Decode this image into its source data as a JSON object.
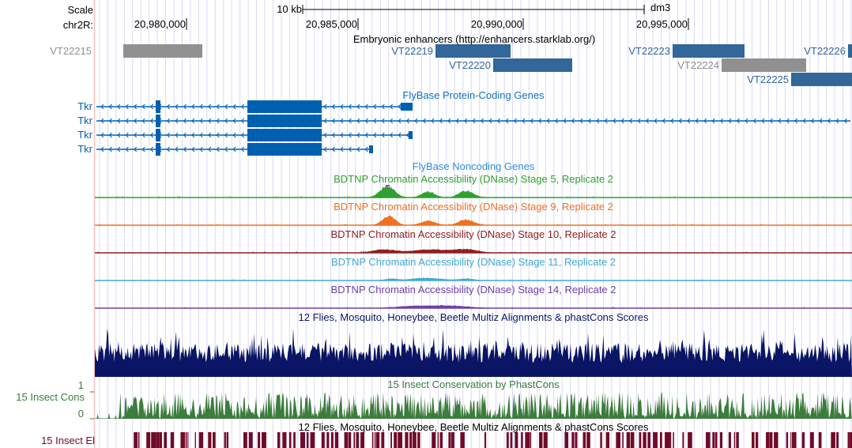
{
  "header": {
    "scale_label": "Scale",
    "scale_bar_label": "10 kb",
    "assembly": "dm3",
    "chrom_label": "chr2R:",
    "ticks": [
      "20,980,000",
      "20,985,000",
      "20,990,000",
      "20,995,000"
    ]
  },
  "colors": {
    "enhancer": "#336699",
    "enhancer_inactive": "#909090",
    "gene": "#0060b0",
    "stage5": "#30a030",
    "stage9": "#f07020",
    "stage10": "#902020",
    "stage11": "#40a8d8",
    "stage14": "#7040a8",
    "multiz": "#0a1565",
    "cons": "#3c7c3c",
    "elements": "#700a28",
    "grid": "#d8d8f8"
  },
  "enhancers": {
    "title": "Embryonic enhancers (http://enhancers.starklab.org/)",
    "items": [
      {
        "name": "VT22215",
        "start": 20978107,
        "end": 20980473,
        "row": 0,
        "active": false
      },
      {
        "name": "VT22219",
        "start": 20987453,
        "end": 20989701,
        "row": 0,
        "active": true
      },
      {
        "name": "VT22220",
        "start": 20989180,
        "end": 20991546,
        "row": 1,
        "active": true
      },
      {
        "name": "VT22223",
        "start": 20994551,
        "end": 20996704,
        "row": 0,
        "active": true
      },
      {
        "name": "VT22224",
        "start": 20996018,
        "end": 20998549,
        "row": 1,
        "active": false
      },
      {
        "name": "VT22225",
        "start": 20998100,
        "end": 21000100,
        "row": 2,
        "active": true
      },
      {
        "name": "VT22226",
        "start": 20999803,
        "end": 21000100,
        "row": 0,
        "active": true
      }
    ]
  },
  "genes": {
    "title": "FlyBase Protein-Coding Genes",
    "strand": "-",
    "transcripts": [
      {
        "name": "Tkr",
        "end": 20986767,
        "exons": [
          [
            20979077,
            20979219
          ],
          [
            20981822,
            20984046
          ],
          [
            20986412,
            20986767
          ]
        ]
      },
      {
        "name": "Tkr",
        "end": 21000100,
        "exons": [
          [
            20979077,
            20979219
          ],
          [
            20981822,
            20984046
          ]
        ]
      },
      {
        "name": "Tkr",
        "end": 20986767,
        "exons": [
          [
            20979077,
            20979219
          ],
          [
            20981822,
            20984046
          ],
          [
            20986649,
            20986767
          ]
        ]
      },
      {
        "name": "Tkr",
        "end": 20985584,
        "exons": [
          [
            20979077,
            20979219
          ],
          [
            20981822,
            20984046
          ],
          [
            20985466,
            20985584
          ]
        ]
      }
    ]
  },
  "noncoding": {
    "title": "FlyBase Noncoding Genes"
  },
  "dnase": [
    {
      "title": "BDTNP Chromatin Accessibility (DNase) Stage 5, Replicate 2",
      "color_key": "stage5"
    },
    {
      "title": "BDTNP Chromatin Accessibility (DNase) Stage 9, Replicate 2",
      "color_key": "stage9"
    },
    {
      "title": "BDTNP Chromatin Accessibility (DNase) Stage 10, Replicate 2",
      "color_key": "stage10"
    },
    {
      "title": "BDTNP Chromatin Accessibility (DNase) Stage 11, Replicate 2",
      "color_key": "stage11"
    },
    {
      "title": "BDTNP Chromatin Accessibility (DNase) Stage 14, Replicate 2",
      "color_key": "stage14"
    }
  ],
  "multiz": {
    "title": "12 Flies, Mosquito, Honeybee, Beetle Multiz Alignments & phastCons Scores"
  },
  "cons": {
    "title": "15 Insect Conservation by PhastCons",
    "side_label": "15 Insect Cons",
    "ymax": "1",
    "ymin": "0"
  },
  "elements": {
    "title": "12 Flies, Mosquito, Honeybee, Beetle Multiz Alignments & phastCons Scores",
    "side_label": "15 Insect El"
  }
}
